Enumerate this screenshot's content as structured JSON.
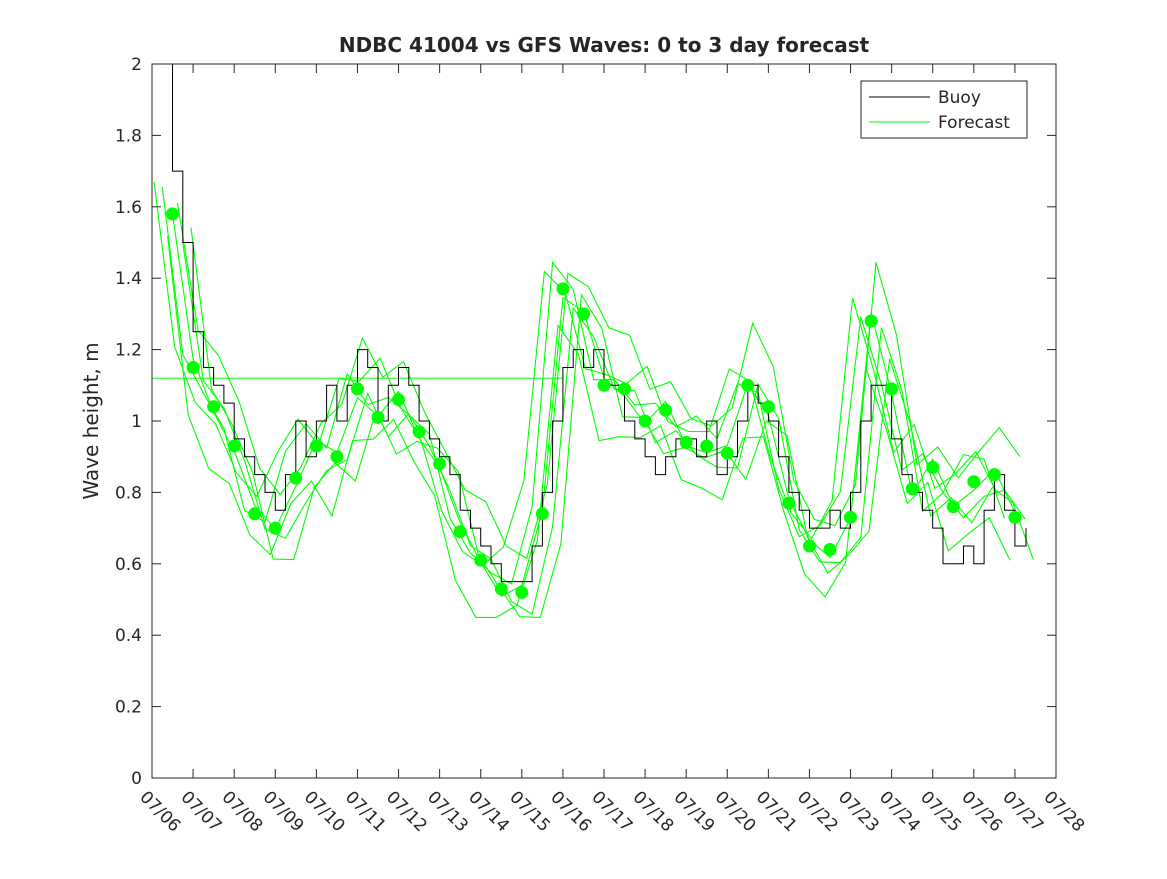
{
  "chart_data": {
    "type": "line",
    "title": "NDBC 41004 vs GFS Waves: 0 to 3 day forecast",
    "xlabel": "",
    "ylabel": "Wave height, m",
    "xlim": [
      "07/06",
      "07/28"
    ],
    "ylim": [
      0,
      2
    ],
    "x_ticks": [
      "07/06",
      "07/07",
      "07/08",
      "07/09",
      "07/10",
      "07/11",
      "07/12",
      "07/13",
      "07/14",
      "07/15",
      "07/16",
      "07/17",
      "07/18",
      "07/19",
      "07/20",
      "07/21",
      "07/22",
      "07/23",
      "07/24",
      "07/25",
      "07/26",
      "07/27",
      "07/28"
    ],
    "y_ticks": [
      0,
      0.2,
      0.4,
      0.6,
      0.8,
      1,
      1.2,
      1.4,
      1.6,
      1.8,
      2
    ],
    "y_tick_labels": [
      "0",
      "0.2",
      "0.4",
      "0.6",
      "0.8",
      "1",
      "1.2",
      "1.4",
      "1.6",
      "1.8",
      "2"
    ],
    "grid": false,
    "legend": {
      "position": "top-right",
      "entries": [
        "Buoy",
        "Forecast"
      ]
    },
    "colors": {
      "buoy": "#000000",
      "forecast": "#00ff00",
      "axes": "#262626",
      "background": "#ffffff"
    },
    "horizontal_line": {
      "series": "Forecast",
      "y": 1.12,
      "x_range": [
        "07/06",
        "07/16"
      ]
    },
    "buoy": {
      "name": "Buoy",
      "points": [
        [
          "07/06 09:00",
          2.0
        ],
        [
          "07/06 12:00",
          1.7
        ],
        [
          "07/06 18:00",
          1.5
        ],
        [
          "07/07 00:00",
          1.25
        ],
        [
          "07/07 06:00",
          1.15
        ],
        [
          "07/07 12:00",
          1.1
        ],
        [
          "07/07 18:00",
          1.05
        ],
        [
          "07/08 00:00",
          0.95
        ],
        [
          "07/08 06:00",
          0.9
        ],
        [
          "07/08 12:00",
          0.85
        ],
        [
          "07/08 18:00",
          0.8
        ],
        [
          "07/09 00:00",
          0.75
        ],
        [
          "07/09 06:00",
          0.85
        ],
        [
          "07/09 12:00",
          1.0
        ],
        [
          "07/09 18:00",
          0.9
        ],
        [
          "07/10 00:00",
          1.0
        ],
        [
          "07/10 06:00",
          1.1
        ],
        [
          "07/10 12:00",
          1.0
        ],
        [
          "07/10 18:00",
          1.1
        ],
        [
          "07/11 00:00",
          1.2
        ],
        [
          "07/11 06:00",
          1.15
        ],
        [
          "07/11 12:00",
          1.0
        ],
        [
          "07/11 18:00",
          1.1
        ],
        [
          "07/12 00:00",
          1.15
        ],
        [
          "07/12 06:00",
          1.1
        ],
        [
          "07/12 12:00",
          1.0
        ],
        [
          "07/12 18:00",
          0.95
        ],
        [
          "07/13 00:00",
          0.9
        ],
        [
          "07/13 06:00",
          0.85
        ],
        [
          "07/13 12:00",
          0.75
        ],
        [
          "07/13 18:00",
          0.7
        ],
        [
          "07/14 00:00",
          0.65
        ],
        [
          "07/14 06:00",
          0.6
        ],
        [
          "07/14 12:00",
          0.55
        ],
        [
          "07/14 18:00",
          0.55
        ],
        [
          "07/15 00:00",
          0.55
        ],
        [
          "07/15 06:00",
          0.65
        ],
        [
          "07/15 12:00",
          0.8
        ],
        [
          "07/15 18:00",
          1.0
        ],
        [
          "07/16 00:00",
          1.15
        ],
        [
          "07/16 06:00",
          1.2
        ],
        [
          "07/16 12:00",
          1.15
        ],
        [
          "07/16 18:00",
          1.2
        ],
        [
          "07/17 00:00",
          1.1
        ],
        [
          "07/17 06:00",
          1.1
        ],
        [
          "07/17 12:00",
          1.0
        ],
        [
          "07/17 18:00",
          0.95
        ],
        [
          "07/18 00:00",
          0.9
        ],
        [
          "07/18 06:00",
          0.85
        ],
        [
          "07/18 12:00",
          0.9
        ],
        [
          "07/18 18:00",
          0.95
        ],
        [
          "07/19 00:00",
          0.95
        ],
        [
          "07/19 06:00",
          0.9
        ],
        [
          "07/19 12:00",
          1.0
        ],
        [
          "07/19 18:00",
          0.85
        ],
        [
          "07/20 00:00",
          0.9
        ],
        [
          "07/20 06:00",
          1.0
        ],
        [
          "07/20 12:00",
          1.1
        ],
        [
          "07/20 18:00",
          1.05
        ],
        [
          "07/21 00:00",
          1.0
        ],
        [
          "07/21 06:00",
          0.9
        ],
        [
          "07/21 12:00",
          0.8
        ],
        [
          "07/21 18:00",
          0.75
        ],
        [
          "07/22 00:00",
          0.7
        ],
        [
          "07/22 06:00",
          0.7
        ],
        [
          "07/22 12:00",
          0.75
        ],
        [
          "07/22 18:00",
          0.7
        ],
        [
          "07/23 00:00",
          0.8
        ],
        [
          "07/23 06:00",
          1.0
        ],
        [
          "07/23 12:00",
          1.1
        ],
        [
          "07/23 18:00",
          1.1
        ],
        [
          "07/24 00:00",
          0.95
        ],
        [
          "07/24 06:00",
          0.85
        ],
        [
          "07/24 12:00",
          0.8
        ],
        [
          "07/24 18:00",
          0.75
        ],
        [
          "07/25 00:00",
          0.7
        ],
        [
          "07/25 06:00",
          0.6
        ],
        [
          "07/25 12:00",
          0.6
        ],
        [
          "07/25 18:00",
          0.65
        ],
        [
          "07/26 00:00",
          0.6
        ],
        [
          "07/26 06:00",
          0.75
        ],
        [
          "07/26 12:00",
          0.85
        ],
        [
          "07/26 18:00",
          0.75
        ],
        [
          "07/27 00:00",
          0.65
        ],
        [
          "07/27 06:00",
          0.65
        ],
        [
          "07/27 06:30",
          0.7
        ]
      ]
    },
    "forecast": {
      "name": "Forecast",
      "markers": [
        [
          "07/06 12:00",
          1.58
        ],
        [
          "07/07 00:00",
          1.15
        ],
        [
          "07/07 12:00",
          1.04
        ],
        [
          "07/08 00:00",
          0.93
        ],
        [
          "07/08 12:00",
          0.74
        ],
        [
          "07/09 00:00",
          0.7
        ],
        [
          "07/09 12:00",
          0.84
        ],
        [
          "07/10 00:00",
          0.93
        ],
        [
          "07/10 12:00",
          0.9
        ],
        [
          "07/11 00:00",
          1.09
        ],
        [
          "07/11 12:00",
          1.01
        ],
        [
          "07/12 00:00",
          1.06
        ],
        [
          "07/12 12:00",
          0.97
        ],
        [
          "07/13 00:00",
          0.88
        ],
        [
          "07/13 12:00",
          0.69
        ],
        [
          "07/14 00:00",
          0.61
        ],
        [
          "07/14 12:00",
          0.53
        ],
        [
          "07/15 00:00",
          0.52
        ],
        [
          "07/15 12:00",
          0.74
        ],
        [
          "07/16 00:00",
          1.37
        ],
        [
          "07/16 12:00",
          1.3
        ],
        [
          "07/17 00:00",
          1.1
        ],
        [
          "07/17 12:00",
          1.09
        ],
        [
          "07/18 00:00",
          1.0
        ],
        [
          "07/18 12:00",
          1.03
        ],
        [
          "07/19 00:00",
          0.94
        ],
        [
          "07/19 12:00",
          0.93
        ],
        [
          "07/20 00:00",
          0.91
        ],
        [
          "07/20 12:00",
          1.1
        ],
        [
          "07/21 00:00",
          1.04
        ],
        [
          "07/21 12:00",
          0.77
        ],
        [
          "07/22 00:00",
          0.65
        ],
        [
          "07/22 12:00",
          0.64
        ],
        [
          "07/23 00:00",
          0.73
        ],
        [
          "07/23 12:00",
          1.28
        ],
        [
          "07/24 00:00",
          1.09
        ],
        [
          "07/24 12:00",
          0.81
        ],
        [
          "07/25 00:00",
          0.87
        ],
        [
          "07/25 12:00",
          0.76
        ],
        [
          "07/26 00:00",
          0.83
        ],
        [
          "07/26 12:00",
          0.85
        ],
        [
          "07/27 00:00",
          0.73
        ]
      ]
    }
  }
}
